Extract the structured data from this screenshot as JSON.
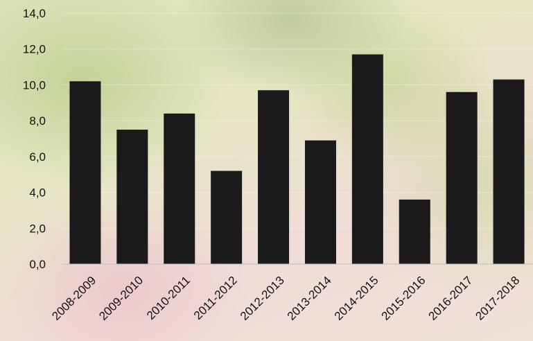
{
  "chart_data": {
    "type": "bar",
    "categories": [
      "2008-2009",
      "2009-2010",
      "2010-2011",
      "2011-2012",
      "2012-2013",
      "2013-2014",
      "2014-2015",
      "2015-2016",
      "2016-2017",
      "2017-2018"
    ],
    "values": [
      10.2,
      7.5,
      8.4,
      5.2,
      9.7,
      6.9,
      11.7,
      3.6,
      9.6,
      10.3
    ],
    "ylim": [
      0,
      14
    ],
    "yticks": [
      "0,0",
      "2,0",
      "4,0",
      "6,0",
      "8,0",
      "10,0",
      "12,0",
      "14,0"
    ],
    "ytick_values": [
      0,
      2,
      4,
      6,
      8,
      10,
      12,
      14
    ],
    "bar_color": "#1a1a1a",
    "grid": true,
    "title": "",
    "xlabel": "",
    "ylabel": ""
  }
}
